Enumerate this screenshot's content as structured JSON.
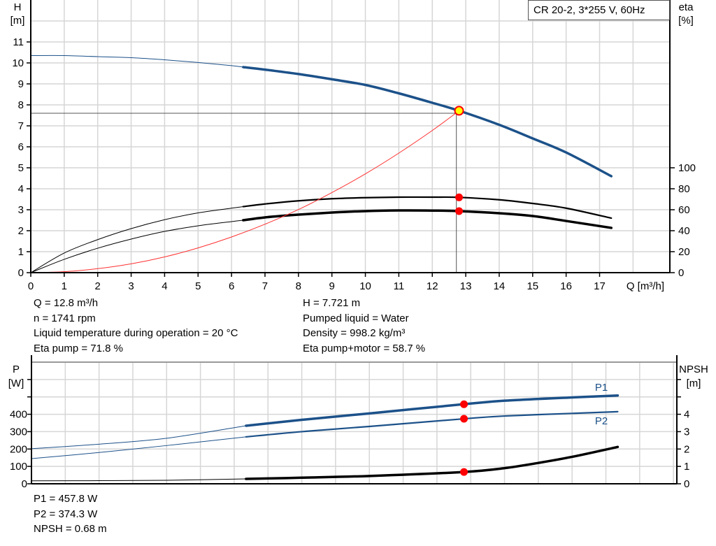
{
  "chart_data": [
    {
      "type": "line",
      "legend_text": "CR 20-2, 3*255 V, 60Hz",
      "xlabel": "Q [m³/h]",
      "ylabel_name": "H",
      "ylabel_unit": "[m]",
      "y2label_name": "eta",
      "y2label_unit": "[%]",
      "xlim": [
        0,
        19.1
      ],
      "ylim": [
        0,
        13
      ],
      "y2lim": [
        0,
        260
      ],
      "x_ticks": [
        0,
        1,
        2,
        3,
        4,
        5,
        6,
        7,
        8,
        9,
        10,
        11,
        12,
        13,
        14,
        15,
        16,
        17
      ],
      "y_ticks": [
        0,
        1,
        2,
        3,
        4,
        5,
        6,
        7,
        8,
        9,
        10,
        11
      ],
      "y2_ticks": [
        0,
        20,
        40,
        60,
        80,
        100
      ],
      "grid": true,
      "duty_range": [
        6.35,
        17.35
      ],
      "series": [
        {
          "key": "H",
          "axis": "y",
          "color": "#1c5189",
          "x": [
            0,
            1,
            2,
            3,
            4,
            5,
            6,
            6.35,
            7,
            8,
            9,
            10,
            11,
            12,
            12.8,
            14,
            15,
            16,
            17.35
          ],
          "y": [
            10.35,
            10.35,
            10.3,
            10.25,
            10.15,
            10.02,
            9.87,
            9.8,
            9.68,
            9.47,
            9.22,
            8.95,
            8.55,
            8.1,
            7.72,
            7.05,
            6.4,
            5.73,
            4.6
          ]
        },
        {
          "key": "eta_pump",
          "axis": "y2",
          "color": "#000000",
          "x": [
            0,
            1,
            2,
            3,
            4,
            5,
            6,
            6.35,
            7,
            8,
            9,
            10,
            11,
            12,
            12.8,
            14,
            15,
            16,
            17.35
          ],
          "y": [
            0,
            18.7,
            31.5,
            42,
            50.5,
            57,
            61.5,
            63,
            65.5,
            68.5,
            70.5,
            71.5,
            72,
            72,
            71.8,
            69.5,
            66,
            61.5,
            52
          ]
        },
        {
          "key": "eta_pump_motor",
          "axis": "y2",
          "color": "#000000",
          "x": [
            0,
            1,
            2,
            3,
            4,
            5,
            6,
            6.35,
            7,
            8,
            9,
            10,
            11,
            12,
            12.8,
            14,
            15,
            16,
            17.35
          ],
          "y": [
            0,
            12.7,
            23.3,
            32,
            39.3,
            44.7,
            48.7,
            50,
            52.7,
            55.3,
            57.3,
            58.7,
            59.3,
            59.2,
            58.7,
            56.7,
            54,
            49.3,
            42.7
          ]
        },
        {
          "key": "system_curve",
          "axis": "y",
          "color": "#ff3030",
          "x": [
            0,
            1,
            2,
            3,
            4,
            5,
            6,
            7,
            8,
            9,
            10,
            11,
            12,
            12.8
          ],
          "y": [
            0,
            0.047,
            0.19,
            0.42,
            0.75,
            1.18,
            1.7,
            2.31,
            3.01,
            3.82,
            4.71,
            5.7,
            6.78,
            7.72
          ]
        }
      ],
      "operating_point": {
        "Q": 12.8,
        "H": 7.721,
        "eta_pump": 71.8,
        "eta_pump_motor": 58.7
      },
      "reference_lines": {
        "H": 7.6,
        "Q": 12.72
      }
    },
    {
      "type": "line",
      "ylabel_name": "P",
      "ylabel_unit": "[W]",
      "y2label_name": "NPSH",
      "y2label_unit": "[m]",
      "xlim": [
        0,
        19.1
      ],
      "ylim": [
        0,
        700
      ],
      "y2lim": [
        0,
        7
      ],
      "y_ticks": [
        0,
        100,
        200,
        300,
        400,
        500,
        600
      ],
      "y_tick_labels": [
        "0",
        "100",
        "200",
        "300",
        "400",
        "",
        ""
      ],
      "y2_ticks": [
        0,
        1,
        2,
        3,
        4,
        5,
        6
      ],
      "y2_tick_labels": [
        "0",
        "1",
        "2",
        "3",
        "4",
        "",
        ""
      ],
      "grid": true,
      "duty_range": [
        6.35,
        17.35
      ],
      "series": [
        {
          "key": "P1",
          "name": "P1",
          "axis": "y",
          "color": "#1c5189",
          "x": [
            0,
            2,
            4,
            6.35,
            8,
            10,
            12.8,
            14,
            16,
            17.35
          ],
          "y": [
            202,
            228,
            262,
            334,
            368,
            405,
            458,
            478,
            497,
            508
          ]
        },
        {
          "key": "P2",
          "name": "P2",
          "axis": "y",
          "color": "#1c5189",
          "x": [
            0,
            2,
            4,
            6.35,
            8,
            10,
            12.8,
            14,
            16,
            17.35
          ],
          "y": [
            145,
            180,
            220,
            270,
            300,
            330,
            374,
            390,
            405,
            415
          ]
        },
        {
          "key": "NPSH",
          "axis": "y2",
          "color": "#000000",
          "x": [
            0,
            2,
            4,
            6.35,
            8,
            10,
            12.8,
            14,
            15,
            16,
            17.35
          ],
          "y": [
            0.17,
            0.18,
            0.2,
            0.28,
            0.35,
            0.45,
            0.68,
            0.9,
            1.2,
            1.55,
            2.12
          ]
        }
      ],
      "operating_point": {
        "Q": 12.8,
        "P1": 457.8,
        "P2": 374.3,
        "NPSH": 0.68
      }
    }
  ],
  "readouts": {
    "left": [
      "Q = 12.8 m³/h",
      "n = 1741 rpm",
      "Liquid temperature during operation = 20 °C",
      "Eta pump = 71.8 %"
    ],
    "right": [
      "H = 7.721 m",
      "Pumped liquid = Water",
      "Density = 998.2 kg/m³",
      "Eta pump+motor = 58.7 %"
    ],
    "power": [
      "P1 = 457.8 W",
      "P2 = 374.3 W",
      "NPSH = 0.68 m"
    ]
  }
}
